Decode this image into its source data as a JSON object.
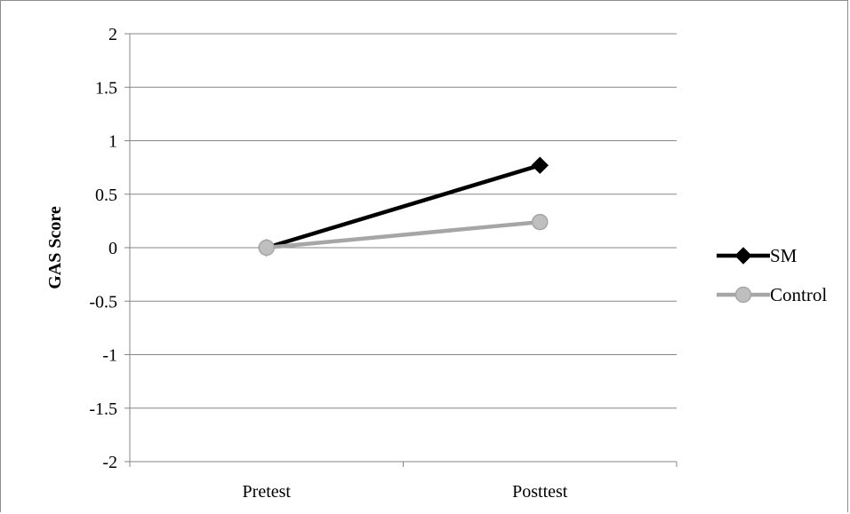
{
  "chart_data": {
    "type": "line",
    "categories": [
      "Pretest",
      "Posttest"
    ],
    "series": [
      {
        "name": "SM",
        "values": [
          0,
          0.77
        ],
        "color": "#000000",
        "marker": "diamond"
      },
      {
        "name": "Control",
        "values": [
          0,
          0.24
        ],
        "color": "#a6a6a6",
        "marker": "circle"
      }
    ],
    "title": "",
    "xlabel": "",
    "ylabel": "GAS Score",
    "ylim": [
      -2,
      2
    ],
    "yticks": [
      2,
      1.5,
      1,
      0.5,
      0,
      -0.5,
      -1,
      -1.5,
      -2
    ],
    "ytick_labels": [
      "2",
      "1.5",
      "1",
      "0.5",
      "0",
      "-0.5",
      "-1",
      "-1.5",
      "-2"
    ],
    "grid": true,
    "legend": "right"
  }
}
